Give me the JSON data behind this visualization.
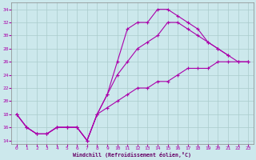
{
  "bg_color": "#cce8ec",
  "grid_color": "#aacccc",
  "line_color": "#aa00aa",
  "xlabel_color": "#660066",
  "xlabel": "Windchill (Refroidissement éolien,°C)",
  "xlim": [
    -0.5,
    23.5
  ],
  "ylim": [
    13.5,
    35
  ],
  "yticks": [
    14,
    16,
    18,
    20,
    22,
    24,
    26,
    28,
    30,
    32,
    34
  ],
  "xticks": [
    0,
    1,
    2,
    3,
    4,
    5,
    6,
    7,
    8,
    9,
    10,
    11,
    12,
    13,
    14,
    15,
    16,
    17,
    18,
    19,
    20,
    21,
    22,
    23
  ],
  "l1x": [
    0,
    1,
    2,
    3,
    4,
    5,
    6,
    7,
    8,
    9,
    10,
    11,
    12,
    13,
    14,
    15,
    16,
    17,
    18,
    19,
    20,
    21
  ],
  "l1y": [
    18,
    16,
    15,
    15,
    16,
    16,
    16,
    14,
    18,
    21,
    26,
    31,
    32,
    32,
    34,
    34,
    33,
    32,
    31,
    29,
    28,
    27
  ],
  "l2x": [
    0,
    1,
    2,
    3,
    4,
    5,
    6,
    7,
    8,
    9,
    10,
    11,
    12,
    13,
    14,
    15,
    16,
    17,
    18,
    19,
    20,
    21,
    22,
    23
  ],
  "l2y": [
    18,
    16,
    15,
    15,
    16,
    16,
    16,
    14,
    18,
    21,
    24,
    26,
    28,
    29,
    30,
    32,
    32,
    31,
    30,
    29,
    28,
    27,
    26,
    26
  ],
  "l3x": [
    0,
    1,
    2,
    3,
    4,
    5,
    6,
    7,
    8,
    9,
    10,
    11,
    12,
    13,
    14,
    15,
    16,
    17,
    18,
    19,
    20,
    21,
    22,
    23
  ],
  "l3y": [
    18,
    16,
    15,
    15,
    16,
    16,
    16,
    14,
    18,
    19,
    20,
    21,
    22,
    22,
    23,
    23,
    24,
    25,
    25,
    25,
    26,
    26,
    26,
    26
  ]
}
